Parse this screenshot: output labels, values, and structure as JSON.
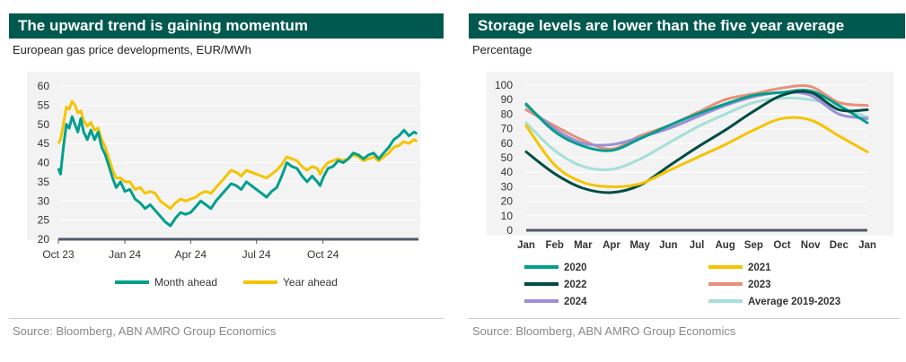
{
  "left": {
    "title": "The upward trend is gaining momentum",
    "subtitle": "European gas price developments, EUR/MWh",
    "source": "Source: Bloomberg, ABN AMRO Group Economics"
  },
  "right": {
    "title": "Storage levels are lower than the five year average",
    "subtitle": "Percentage",
    "source": "Source: Bloomberg, ABN AMRO Group Economics"
  },
  "chart_data": [
    {
      "type": "line",
      "title": "The upward trend is gaining momentum",
      "subtitle": "European gas price developments, EUR/MWh",
      "ylim": [
        20,
        60
      ],
      "yticks": [
        20,
        25,
        30,
        35,
        40,
        45,
        50,
        55,
        60
      ],
      "xlim": [
        "2023-10-01",
        "2025-02-10"
      ],
      "xticks": [
        {
          "label": "Oct 23",
          "date": "2023-10-01"
        },
        {
          "label": "Jan 24",
          "date": "2024-01-01"
        },
        {
          "label": "Apr 24",
          "date": "2024-04-01"
        },
        {
          "label": "Jul 24",
          "date": "2024-07-01"
        },
        {
          "label": "Oct 24",
          "date": "2024-10-01"
        }
      ],
      "grid": true,
      "legend": "bottom",
      "series": [
        {
          "name": "Month ahead",
          "color": "#009f8d",
          "points": [
            [
              "2023-10-01",
              38.5
            ],
            [
              "2023-10-04",
              37.0
            ],
            [
              "2023-10-08",
              44.0
            ],
            [
              "2023-10-12",
              50.0
            ],
            [
              "2023-10-16",
              49.0
            ],
            [
              "2023-10-20",
              52.0
            ],
            [
              "2023-10-24",
              50.0
            ],
            [
              "2023-10-28",
              48.0
            ],
            [
              "2023-11-01",
              51.5
            ],
            [
              "2023-11-05",
              48.0
            ],
            [
              "2023-11-10",
              46.0
            ],
            [
              "2023-11-15",
              48.5
            ],
            [
              "2023-11-20",
              46.0
            ],
            [
              "2023-11-25",
              48.0
            ],
            [
              "2023-11-30",
              44.0
            ],
            [
              "2023-12-05",
              42.0
            ],
            [
              "2023-12-10",
              39.0
            ],
            [
              "2023-12-15",
              36.0
            ],
            [
              "2023-12-20",
              33.5
            ],
            [
              "2023-12-26",
              35.0
            ],
            [
              "2024-01-01",
              32.5
            ],
            [
              "2024-01-08",
              33.0
            ],
            [
              "2024-01-15",
              30.5
            ],
            [
              "2024-01-22",
              29.5
            ],
            [
              "2024-01-29",
              28.0
            ],
            [
              "2024-02-05",
              29.0
            ],
            [
              "2024-02-12",
              27.5
            ],
            [
              "2024-02-19",
              26.0
            ],
            [
              "2024-02-26",
              24.5
            ],
            [
              "2024-03-04",
              23.5
            ],
            [
              "2024-03-11",
              25.5
            ],
            [
              "2024-03-18",
              27.0
            ],
            [
              "2024-03-25",
              26.5
            ],
            [
              "2024-04-01",
              27.0
            ],
            [
              "2024-04-08",
              28.5
            ],
            [
              "2024-04-15",
              30.0
            ],
            [
              "2024-04-22",
              29.0
            ],
            [
              "2024-04-29",
              28.0
            ],
            [
              "2024-05-06",
              30.0
            ],
            [
              "2024-05-13",
              31.5
            ],
            [
              "2024-05-20",
              33.0
            ],
            [
              "2024-05-27",
              34.5
            ],
            [
              "2024-06-03",
              34.0
            ],
            [
              "2024-06-10",
              33.0
            ],
            [
              "2024-06-17",
              35.0
            ],
            [
              "2024-06-24",
              34.0
            ],
            [
              "2024-07-01",
              33.0
            ],
            [
              "2024-07-08",
              32.0
            ],
            [
              "2024-07-15",
              31.0
            ],
            [
              "2024-07-22",
              32.5
            ],
            [
              "2024-07-29",
              33.5
            ],
            [
              "2024-08-05",
              36.5
            ],
            [
              "2024-08-12",
              40.0
            ],
            [
              "2024-08-19",
              39.0
            ],
            [
              "2024-08-26",
              38.5
            ],
            [
              "2024-09-02",
              36.5
            ],
            [
              "2024-09-09",
              35.0
            ],
            [
              "2024-09-16",
              36.5
            ],
            [
              "2024-09-23",
              35.0
            ],
            [
              "2024-09-27",
              34.0
            ],
            [
              "2024-10-01",
              36.0
            ],
            [
              "2024-10-08",
              38.5
            ],
            [
              "2024-10-15",
              39.0
            ],
            [
              "2024-10-22",
              40.5
            ],
            [
              "2024-10-29",
              40.0
            ],
            [
              "2024-11-05",
              41.0
            ],
            [
              "2024-11-12",
              42.5
            ],
            [
              "2024-11-19",
              42.0
            ],
            [
              "2024-11-26",
              41.0
            ],
            [
              "2024-12-03",
              42.0
            ],
            [
              "2024-12-10",
              42.5
            ],
            [
              "2024-12-17",
              41.0
            ],
            [
              "2024-12-24",
              42.5
            ],
            [
              "2024-12-31",
              44.0
            ],
            [
              "2025-01-07",
              46.0
            ],
            [
              "2025-01-14",
              47.0
            ],
            [
              "2025-01-21",
              48.5
            ],
            [
              "2025-01-28",
              47.0
            ],
            [
              "2025-02-04",
              48.0
            ],
            [
              "2025-02-08",
              47.5
            ]
          ]
        },
        {
          "name": "Year ahead",
          "color": "#f5c400",
          "points": [
            [
              "2023-10-01",
              45.0
            ],
            [
              "2023-10-04",
              46.0
            ],
            [
              "2023-10-08",
              50.0
            ],
            [
              "2023-10-12",
              54.5
            ],
            [
              "2023-10-16",
              54.0
            ],
            [
              "2023-10-20",
              56.0
            ],
            [
              "2023-10-24",
              55.0
            ],
            [
              "2023-10-28",
              53.0
            ],
            [
              "2023-11-01",
              53.5
            ],
            [
              "2023-11-05",
              51.0
            ],
            [
              "2023-11-10",
              49.5
            ],
            [
              "2023-11-15",
              50.5
            ],
            [
              "2023-11-20",
              48.5
            ],
            [
              "2023-11-25",
              49.0
            ],
            [
              "2023-11-30",
              46.0
            ],
            [
              "2023-12-05",
              44.0
            ],
            [
              "2023-12-10",
              41.0
            ],
            [
              "2023-12-15",
              38.0
            ],
            [
              "2023-12-20",
              36.0
            ],
            [
              "2023-12-26",
              36.0
            ],
            [
              "2024-01-01",
              35.0
            ],
            [
              "2024-01-08",
              35.0
            ],
            [
              "2024-01-15",
              33.0
            ],
            [
              "2024-01-22",
              33.5
            ],
            [
              "2024-01-29",
              32.0
            ],
            [
              "2024-02-05",
              32.5
            ],
            [
              "2024-02-12",
              32.0
            ],
            [
              "2024-02-19",
              30.0
            ],
            [
              "2024-02-26",
              29.0
            ],
            [
              "2024-03-04",
              28.0
            ],
            [
              "2024-03-11",
              29.5
            ],
            [
              "2024-03-18",
              30.5
            ],
            [
              "2024-03-25",
              30.0
            ],
            [
              "2024-04-01",
              30.5
            ],
            [
              "2024-04-08",
              31.0
            ],
            [
              "2024-04-15",
              32.0
            ],
            [
              "2024-04-22",
              32.5
            ],
            [
              "2024-04-29",
              32.0
            ],
            [
              "2024-05-06",
              33.5
            ],
            [
              "2024-05-13",
              35.0
            ],
            [
              "2024-05-20",
              36.5
            ],
            [
              "2024-05-27",
              38.0
            ],
            [
              "2024-06-03",
              37.5
            ],
            [
              "2024-06-10",
              36.5
            ],
            [
              "2024-06-17",
              38.0
            ],
            [
              "2024-06-24",
              37.5
            ],
            [
              "2024-07-01",
              37.0
            ],
            [
              "2024-07-08",
              36.5
            ],
            [
              "2024-07-15",
              36.0
            ],
            [
              "2024-07-22",
              37.0
            ],
            [
              "2024-07-29",
              38.0
            ],
            [
              "2024-08-05",
              39.5
            ],
            [
              "2024-08-12",
              41.5
            ],
            [
              "2024-08-19",
              41.0
            ],
            [
              "2024-08-26",
              40.5
            ],
            [
              "2024-09-02",
              39.0
            ],
            [
              "2024-09-09",
              38.0
            ],
            [
              "2024-09-16",
              39.0
            ],
            [
              "2024-09-23",
              38.5
            ],
            [
              "2024-09-27",
              37.0
            ],
            [
              "2024-10-01",
              38.5
            ],
            [
              "2024-10-08",
              40.0
            ],
            [
              "2024-10-15",
              40.5
            ],
            [
              "2024-10-22",
              41.0
            ],
            [
              "2024-10-29",
              40.5
            ],
            [
              "2024-11-05",
              41.0
            ],
            [
              "2024-11-12",
              42.0
            ],
            [
              "2024-11-19",
              41.5
            ],
            [
              "2024-11-26",
              40.5
            ],
            [
              "2024-12-03",
              41.0
            ],
            [
              "2024-12-10",
              41.5
            ],
            [
              "2024-12-17",
              40.5
            ],
            [
              "2024-12-24",
              41.5
            ],
            [
              "2024-12-31",
              42.5
            ],
            [
              "2025-01-07",
              44.0
            ],
            [
              "2025-01-14",
              44.5
            ],
            [
              "2025-01-21",
              45.5
            ],
            [
              "2025-01-28",
              45.0
            ],
            [
              "2025-02-04",
              46.0
            ],
            [
              "2025-02-08",
              45.5
            ]
          ]
        }
      ]
    },
    {
      "type": "line",
      "title": "Storage levels are lower than the five year average",
      "subtitle": "Percentage",
      "ylim": [
        0,
        100
      ],
      "yticks": [
        0,
        10,
        20,
        30,
        40,
        50,
        60,
        70,
        80,
        90,
        100
      ],
      "categories": [
        "Jan",
        "Feb",
        "Mar",
        "Apr",
        "May",
        "Jun",
        "Jul",
        "Aug",
        "Sep",
        "Oct",
        "Nov",
        "Dec",
        "Jan"
      ],
      "grid": true,
      "legend": "bottom",
      "series": [
        {
          "name": "2020",
          "color": "#009f8d",
          "values": [
            87,
            68,
            58,
            55,
            63,
            72,
            80,
            87,
            93,
            95,
            96,
            86,
            74
          ]
        },
        {
          "name": "2021",
          "color": "#f5c400",
          "values": [
            72,
            45,
            33,
            30,
            32,
            41,
            50,
            59,
            69,
            77,
            76,
            65,
            54
          ]
        },
        {
          "name": "2022",
          "color": "#004c45",
          "values": [
            54,
            39,
            29,
            26,
            31,
            44,
            57,
            69,
            82,
            93,
            95,
            83,
            83
          ]
        },
        {
          "name": "2023",
          "color": "#e8907a",
          "values": [
            83,
            72,
            62,
            56,
            65,
            72,
            81,
            90,
            94,
            98,
            99,
            88,
            86
          ]
        },
        {
          "name": "2024",
          "color": "#9b8fd6",
          "values": [
            86,
            70,
            60,
            59,
            64,
            70,
            78,
            86,
            92,
            95,
            93,
            80,
            77
          ]
        },
        {
          "name": "Average 2019-2023",
          "color": "#a6dfd8",
          "values": [
            74,
            55,
            44,
            42,
            49,
            60,
            71,
            80,
            88,
            91,
            90,
            85,
            78
          ]
        }
      ]
    }
  ]
}
